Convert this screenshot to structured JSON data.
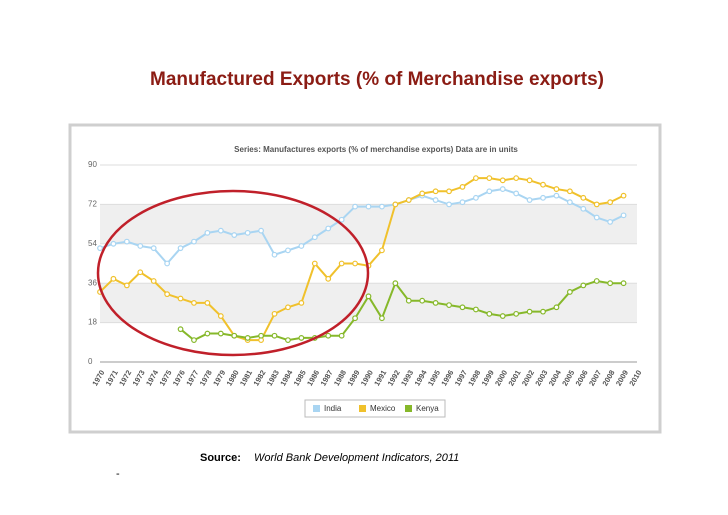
{
  "title": "Manufactured Exports (% of Merchandise exports)",
  "source_label": "Source:",
  "source_text": "World Bank Development Indicators, 2011",
  "footnote_mark": "-",
  "chart_data": {
    "type": "line",
    "title": "Series: Manufactures exports (% of merchandise exports)  Data are in units",
    "categories": [
      "1970",
      "1971",
      "1972",
      "1973",
      "1974",
      "1975",
      "1976",
      "1977",
      "1978",
      "1979",
      "1980",
      "1981",
      "1982",
      "1983",
      "1984",
      "1985",
      "1986",
      "1987",
      "1988",
      "1989",
      "1990",
      "1991",
      "1992",
      "1993",
      "1994",
      "1995",
      "1996",
      "1997",
      "1998",
      "1999",
      "2000",
      "2001",
      "2002",
      "2003",
      "2004",
      "2005",
      "2006",
      "2007",
      "2008",
      "2009",
      "2010"
    ],
    "series": [
      {
        "name": "India",
        "color": "#a9d5f2",
        "values": [
          52,
          54,
          55,
          53,
          52,
          45,
          52,
          55,
          59,
          60,
          58,
          59,
          60,
          49,
          51,
          53,
          57,
          61,
          65,
          71,
          71,
          71,
          72,
          74,
          76,
          74,
          72,
          73,
          75,
          78,
          79,
          77,
          74,
          75,
          76,
          73,
          70,
          66,
          64,
          67,
          null
        ]
      },
      {
        "name": "Mexico",
        "color": "#f0c12c",
        "values": [
          32,
          38,
          35,
          41,
          37,
          31,
          29,
          27,
          27,
          21,
          12,
          10,
          10,
          22,
          25,
          27,
          45,
          38,
          45,
          45,
          44,
          51,
          72,
          74,
          77,
          78,
          78,
          80,
          84,
          84,
          83,
          84,
          83,
          81,
          79,
          78,
          75,
          72,
          73,
          76,
          null
        ]
      },
      {
        "name": "Kenya",
        "color": "#86b82a",
        "values": [
          null,
          null,
          null,
          null,
          null,
          null,
          15,
          10,
          13,
          13,
          12,
          11,
          12,
          12,
          10,
          11,
          11,
          12,
          12,
          20,
          30,
          20,
          36,
          28,
          28,
          27,
          26,
          25,
          24,
          22,
          21,
          22,
          23,
          23,
          25,
          32,
          35,
          37,
          36,
          36,
          null
        ]
      }
    ],
    "ylim": [
      0,
      90
    ],
    "yticks": [
      0,
      18,
      36,
      54,
      72,
      90
    ],
    "grid": true,
    "legend": "bottom"
  }
}
